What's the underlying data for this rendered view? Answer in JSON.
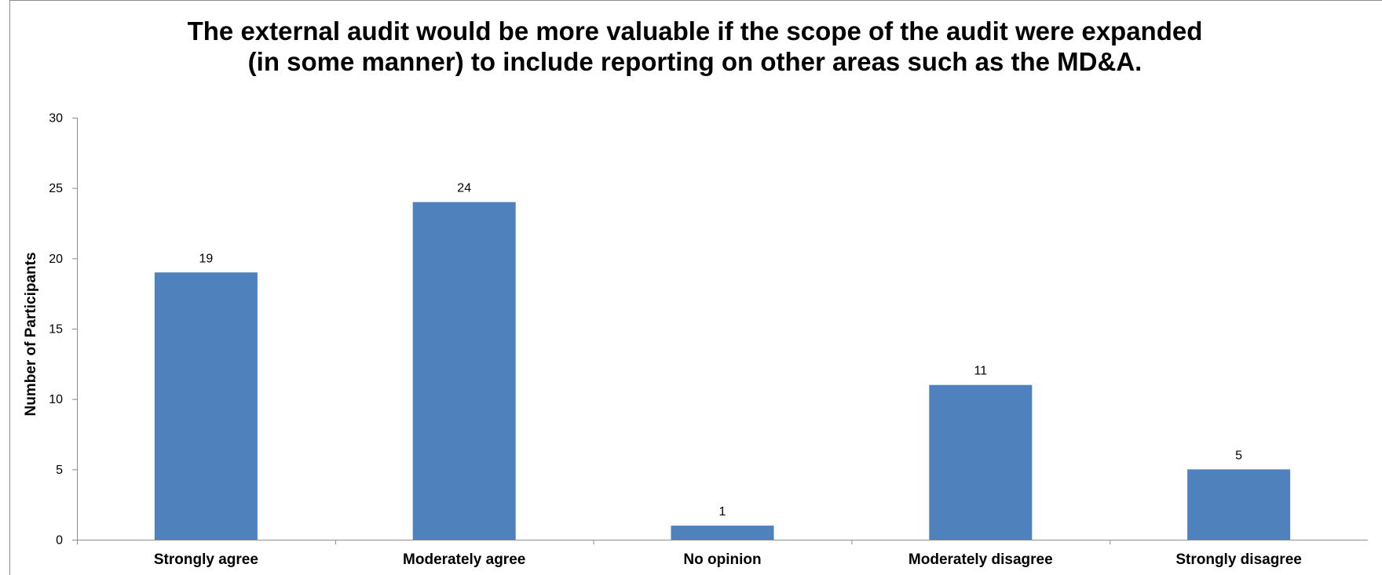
{
  "chart_data": {
    "type": "bar",
    "title": [
      "The external audit would be more valuable if the scope of the audit were expanded",
      "(in some manner) to include reporting on other areas such as the MD&A."
    ],
    "xlabel": "",
    "ylabel": "Number of Participants",
    "categories": [
      "Strongly agree",
      "Moderately agree",
      "No opinion",
      "Moderately disagree",
      "Strongly disagree"
    ],
    "values": [
      19,
      24,
      1,
      11,
      5
    ],
    "ylim": [
      0,
      30
    ],
    "yticks": [
      0,
      5,
      10,
      15,
      20,
      25,
      30
    ],
    "grid": false,
    "legend": "none",
    "bar_color": "#4F81BD",
    "data_labels": true
  }
}
